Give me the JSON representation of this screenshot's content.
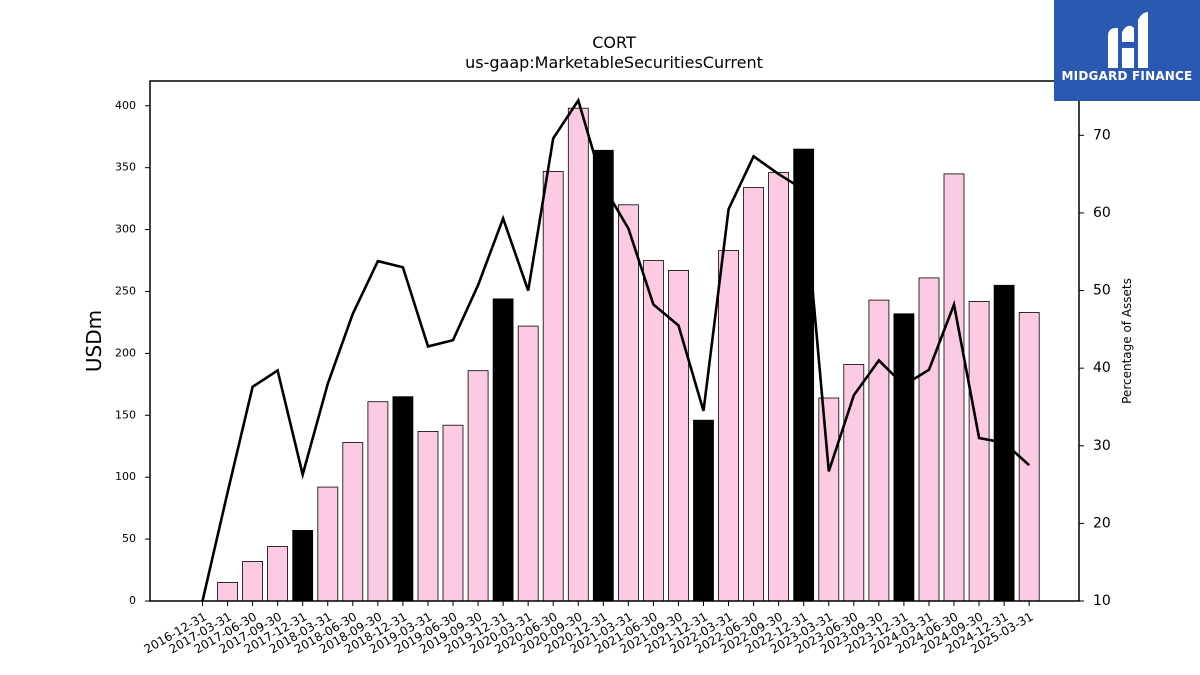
{
  "chart_data": {
    "type": "bar+line",
    "title": "CORT",
    "subtitle": "us-gaap:MarketableSecuritiesCurrent",
    "ylabel": "USDm",
    "y2label": "Percentage of Assets",
    "ylim": [
      0,
      420
    ],
    "y2lim": [
      10,
      77
    ],
    "yticks": [
      0,
      50,
      100,
      150,
      200,
      250,
      300,
      350,
      400
    ],
    "y2ticks": [
      10,
      20,
      30,
      40,
      50,
      60,
      70
    ],
    "x_ticks": [
      "2016-12-31",
      "2017-03-31",
      "2017-06-30",
      "2017-09-30",
      "2017-12-31",
      "2018-03-31",
      "2018-06-30",
      "2018-09-30",
      "2018-12-31",
      "2019-03-31",
      "2019-06-30",
      "2019-09-30",
      "2019-12-31",
      "2020-03-31",
      "2020-06-30",
      "2020-09-30",
      "2020-12-31",
      "2021-03-31",
      "2021-06-30",
      "2021-09-30",
      "2021-12-31",
      "2022-03-31",
      "2022-06-30",
      "2022-09-30",
      "2022-12-31",
      "2023-03-31",
      "2023-06-30",
      "2023-09-30",
      "2023-12-31",
      "2024-03-31",
      "2024-06-30",
      "2024-09-30",
      "2024-12-31",
      "2025-03-31"
    ],
    "bar_values": [
      0,
      15,
      32,
      44,
      57,
      92,
      128,
      161,
      165,
      137,
      142,
      186,
      244,
      222,
      347,
      398,
      364,
      320,
      275,
      267,
      146,
      283,
      334,
      346,
      365,
      164,
      191,
      243,
      232,
      261,
      345,
      242,
      255,
      233
    ],
    "bar_highlight": [
      false,
      false,
      false,
      false,
      true,
      false,
      false,
      false,
      true,
      false,
      false,
      false,
      true,
      false,
      false,
      false,
      true,
      false,
      false,
      false,
      true,
      false,
      false,
      false,
      true,
      false,
      false,
      false,
      true,
      false,
      false,
      false,
      true,
      false
    ],
    "line_values": [
      10,
      24,
      37.6,
      39.7,
      26.3,
      38,
      47,
      53.8,
      53,
      42.8,
      43.6,
      50.7,
      59.3,
      50,
      69.6,
      74.5,
      63.5,
      58,
      48.2,
      45.5,
      34.5,
      60.5,
      67.3,
      65,
      63,
      26.7,
      36.5,
      41,
      37.8,
      39.8,
      48.2,
      31,
      30.4,
      27.5
    ],
    "colors": {
      "bar": "#fccbe3",
      "bar_highlight": "#000000",
      "bar_edge": "#000000",
      "line": "#000000"
    }
  },
  "logo": {
    "text": "MIDGARD FINANCE",
    "bg": "#2b59b1"
  }
}
